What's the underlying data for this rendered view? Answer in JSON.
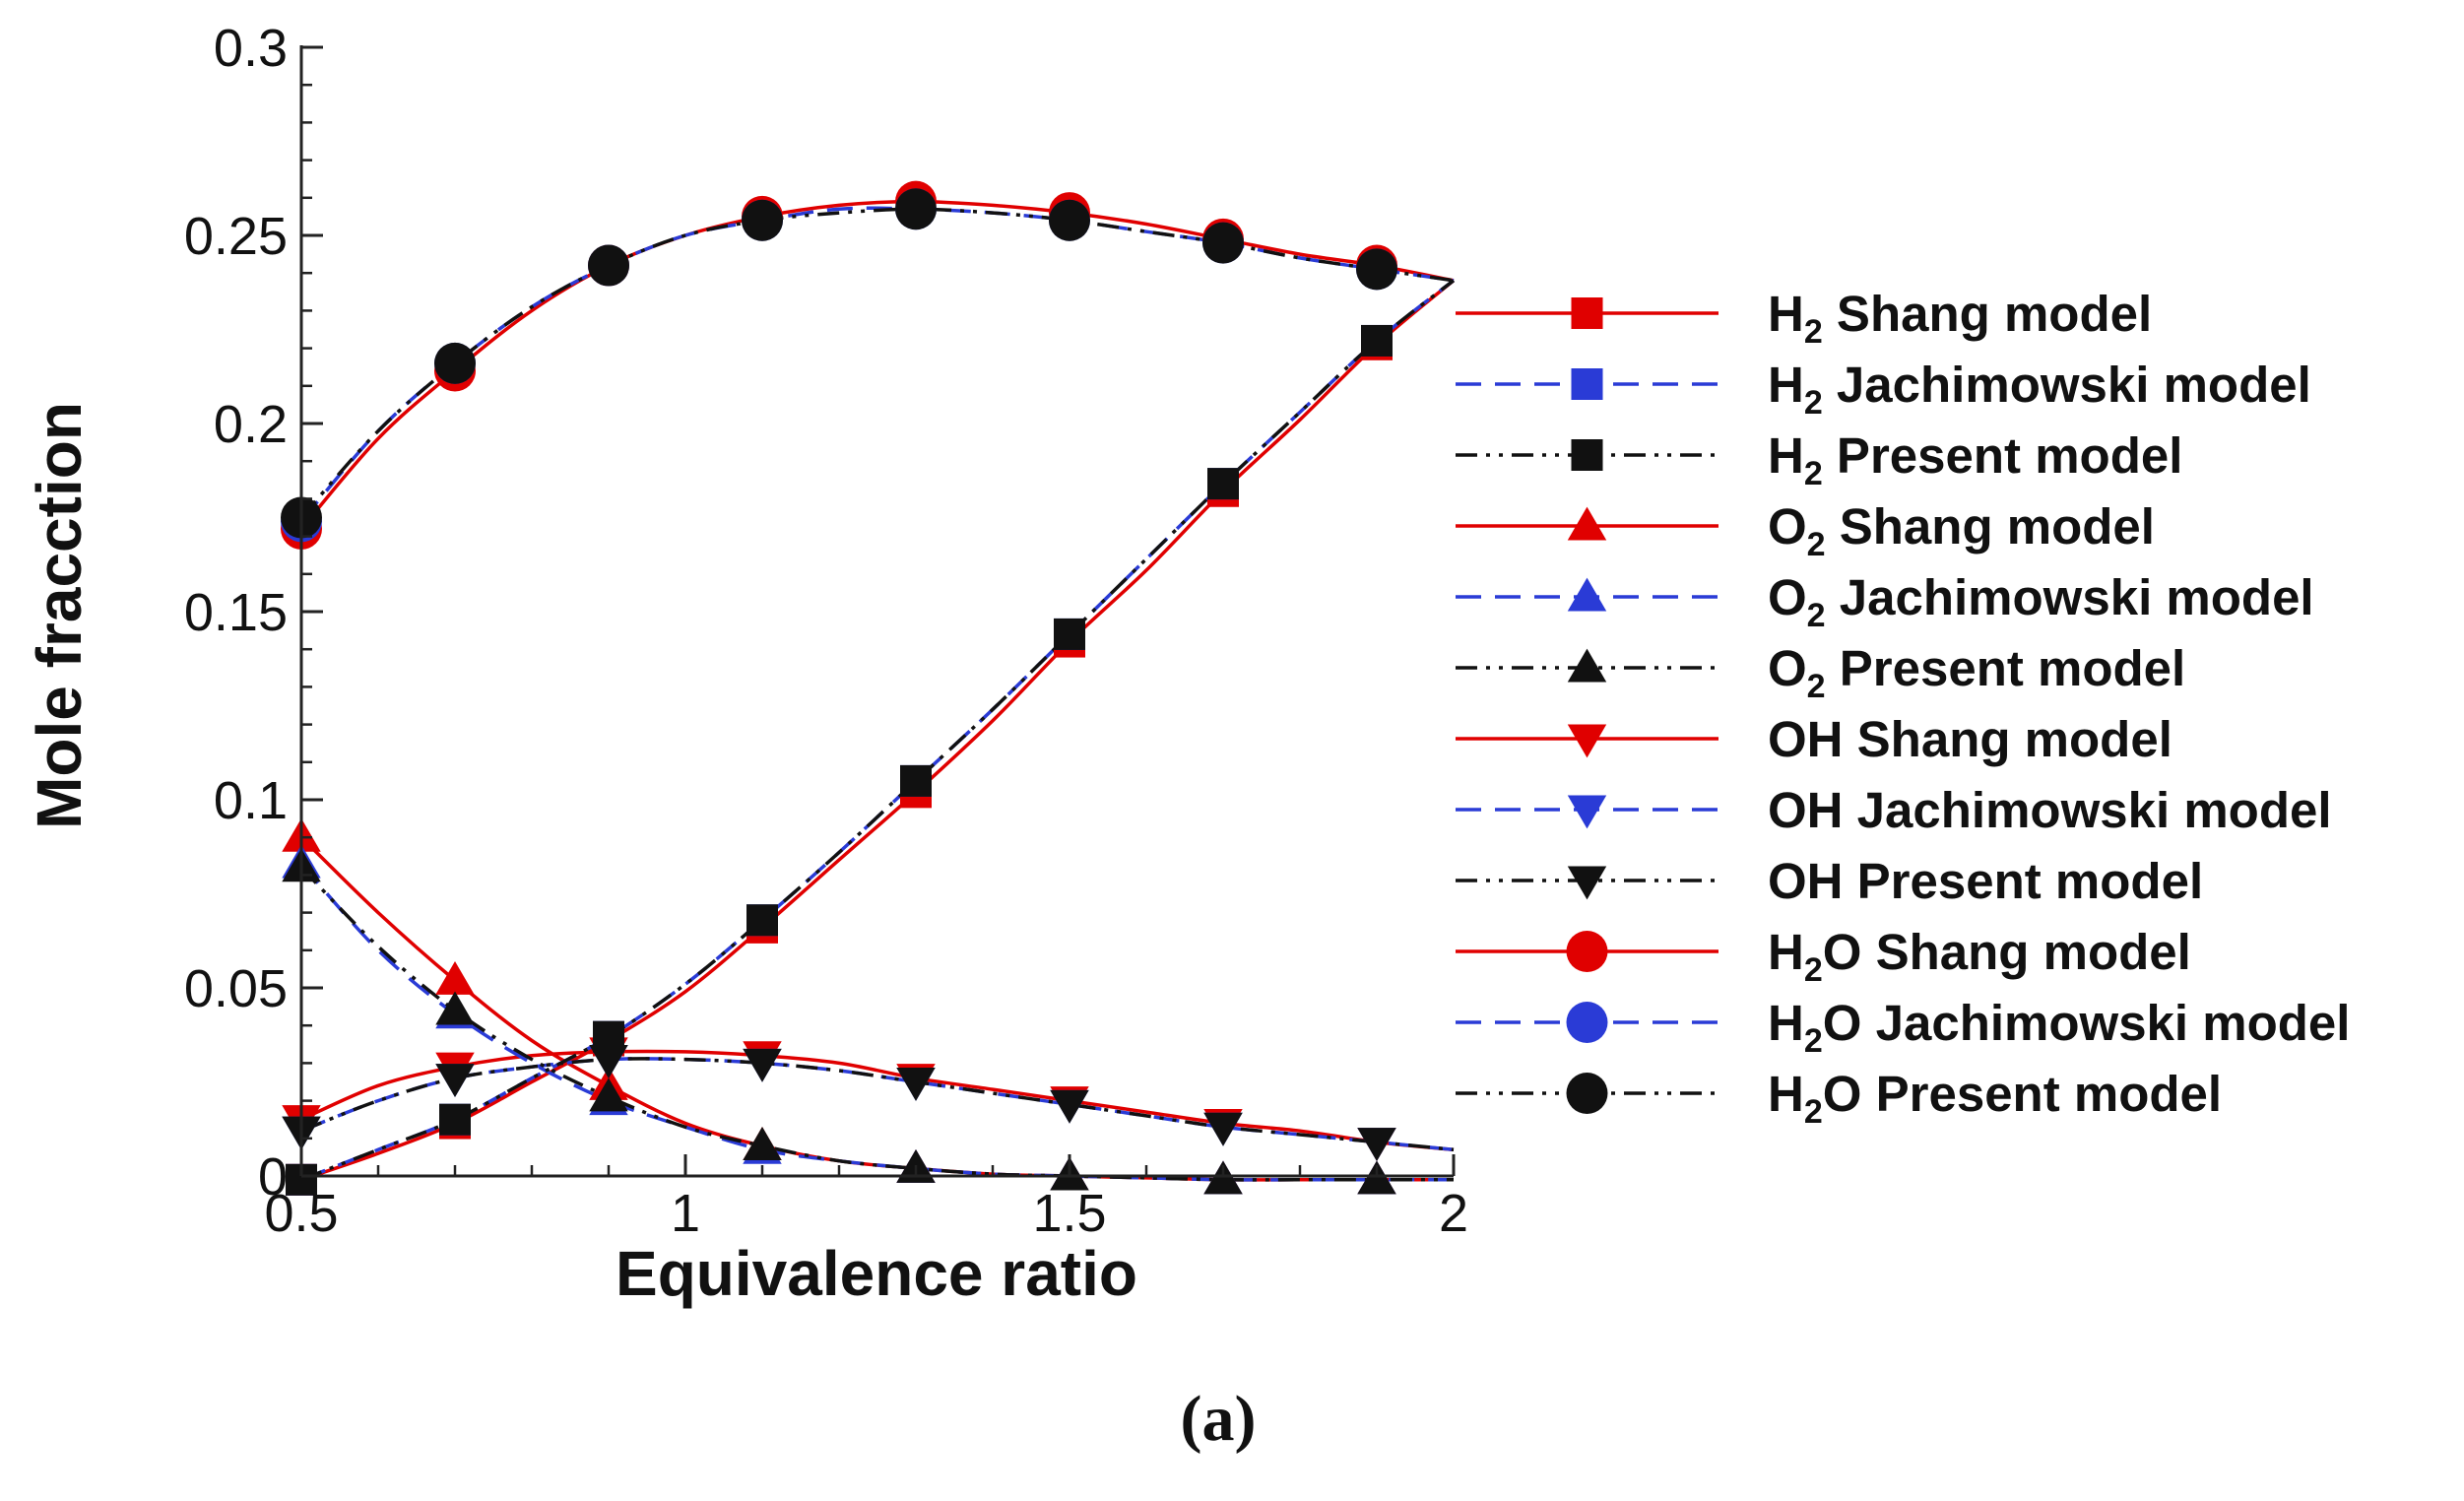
{
  "chart_data": {
    "type": "line",
    "title": "",
    "xlabel": "Equivalence ratio",
    "ylabel": "Mole fracction",
    "xlim": [
      0.5,
      2
    ],
    "ylim": [
      0,
      0.3
    ],
    "xticks": [
      0.5,
      1,
      1.5,
      2
    ],
    "xtick_labels": [
      "0.5",
      "1",
      "1.5",
      "2"
    ],
    "yticks": [
      0,
      0.05,
      0.1,
      0.15,
      0.2,
      0.25,
      0.3
    ],
    "ytick_labels": [
      "0",
      "0.05",
      "0.1",
      "0.15",
      "0.2",
      "0.25",
      "0.3"
    ],
    "grid": false,
    "legend_position": "right",
    "caption": "(a)",
    "marker_x": [
      0.5,
      0.7,
      0.9,
      1.1,
      1.3,
      1.5,
      1.7,
      1.9
    ],
    "series": [
      {
        "species": "H",
        "sub": "2",
        "rest": "",
        "model": "Shang model",
        "color": "#e00000",
        "dash": "solid",
        "marker": "square",
        "x": [
          0.5,
          0.6,
          0.7,
          0.8,
          0.9,
          1.0,
          1.1,
          1.2,
          1.3,
          1.4,
          1.5,
          1.6,
          1.7,
          1.8,
          1.9,
          2.0
        ],
        "y": [
          -0.001,
          0.006,
          0.014,
          0.025,
          0.036,
          0.049,
          0.066,
          0.084,
          0.102,
          0.121,
          0.142,
          0.161,
          0.182,
          0.201,
          0.221,
          0.238
        ]
      },
      {
        "species": "H",
        "sub": "2",
        "rest": "",
        "model": "Jachimowski model",
        "color": "#2a3bd6",
        "dash": "dashed",
        "marker": "square",
        "x": [
          0.5,
          0.6,
          0.7,
          0.8,
          0.9,
          1.0,
          1.1,
          1.2,
          1.3,
          1.4,
          1.5,
          1.6,
          1.7,
          1.8,
          1.9,
          2.0
        ],
        "y": [
          -0.001,
          0.007,
          0.015,
          0.026,
          0.037,
          0.051,
          0.068,
          0.086,
          0.105,
          0.124,
          0.144,
          0.164,
          0.184,
          0.203,
          0.222,
          0.238
        ]
      },
      {
        "species": "H",
        "sub": "2",
        "rest": "",
        "model": "Present model",
        "color": "#111111",
        "dash": "dashdot",
        "marker": "square",
        "x": [
          0.5,
          0.6,
          0.7,
          0.8,
          0.9,
          1.0,
          1.1,
          1.2,
          1.3,
          1.4,
          1.5,
          1.6,
          1.7,
          1.8,
          1.9,
          2.0
        ],
        "y": [
          -0.001,
          0.007,
          0.015,
          0.026,
          0.037,
          0.051,
          0.068,
          0.086,
          0.105,
          0.124,
          0.144,
          0.164,
          0.184,
          0.203,
          0.222,
          0.238
        ]
      },
      {
        "species": "O",
        "sub": "2",
        "rest": "",
        "model": "Shang model",
        "color": "#e00000",
        "dash": "solid",
        "marker": "triangle-up",
        "x": [
          0.5,
          0.6,
          0.7,
          0.8,
          0.9,
          1.0,
          1.1,
          1.2,
          1.3,
          1.4,
          1.5,
          1.6,
          1.7,
          1.8,
          1.9,
          2.0
        ],
        "y": [
          0.09,
          0.07,
          0.052,
          0.036,
          0.024,
          0.014,
          0.008,
          0.004,
          0.002,
          0.0005,
          0.0,
          -0.0005,
          -0.001,
          -0.001,
          -0.001,
          -0.001
        ]
      },
      {
        "species": "O",
        "sub": "2",
        "rest": "",
        "model": "Jachimowski model",
        "color": "#2a3bd6",
        "dash": "dashed",
        "marker": "triangle-up",
        "x": [
          0.5,
          0.6,
          0.7,
          0.8,
          0.9,
          1.0,
          1.1,
          1.2,
          1.3,
          1.4,
          1.5,
          1.6,
          1.7,
          1.8,
          1.9,
          2.0
        ],
        "y": [
          0.083,
          0.06,
          0.043,
          0.03,
          0.02,
          0.013,
          0.007,
          0.004,
          0.002,
          0.0005,
          0.0,
          -0.0005,
          -0.001,
          -0.001,
          -0.001,
          -0.001
        ]
      },
      {
        "species": "O",
        "sub": "2",
        "rest": "",
        "model": "Present model",
        "color": "#111111",
        "dash": "dashdot",
        "marker": "triangle-up",
        "x": [
          0.5,
          0.6,
          0.7,
          0.8,
          0.9,
          1.0,
          1.1,
          1.2,
          1.3,
          1.4,
          1.5,
          1.6,
          1.7,
          1.8,
          1.9,
          2.0
        ],
        "y": [
          0.082,
          0.061,
          0.044,
          0.031,
          0.021,
          0.013,
          0.008,
          0.004,
          0.002,
          0.0005,
          0.0,
          -0.0005,
          -0.001,
          -0.001,
          -0.001,
          -0.001
        ]
      },
      {
        "species": "OH",
        "sub": "",
        "rest": "",
        "model": "Shang model",
        "color": "#e00000",
        "dash": "solid",
        "marker": "triangle-down",
        "x": [
          0.5,
          0.6,
          0.7,
          0.8,
          0.9,
          1.0,
          1.1,
          1.2,
          1.3,
          1.4,
          1.5,
          1.6,
          1.7,
          1.8,
          1.9,
          2.0
        ],
        "y": [
          0.015,
          0.024,
          0.029,
          0.032,
          0.033,
          0.033,
          0.032,
          0.03,
          0.026,
          0.023,
          0.02,
          0.017,
          0.014,
          0.012,
          0.009,
          0.007
        ]
      },
      {
        "species": "OH",
        "sub": "",
        "rest": "",
        "model": "Jachimowski model",
        "color": "#2a3bd6",
        "dash": "dashed",
        "marker": "triangle-down",
        "x": [
          0.5,
          0.6,
          0.7,
          0.8,
          0.9,
          1.0,
          1.1,
          1.2,
          1.3,
          1.4,
          1.5,
          1.6,
          1.7,
          1.8,
          1.9,
          2.0
        ],
        "y": [
          0.012,
          0.02,
          0.026,
          0.029,
          0.031,
          0.031,
          0.03,
          0.028,
          0.025,
          0.022,
          0.019,
          0.016,
          0.013,
          0.011,
          0.009,
          0.007
        ]
      },
      {
        "species": "OH",
        "sub": "",
        "rest": "",
        "model": "Present model",
        "color": "#111111",
        "dash": "dashdot",
        "marker": "triangle-down",
        "x": [
          0.5,
          0.6,
          0.7,
          0.8,
          0.9,
          1.0,
          1.1,
          1.2,
          1.3,
          1.4,
          1.5,
          1.6,
          1.7,
          1.8,
          1.9,
          2.0
        ],
        "y": [
          0.012,
          0.02,
          0.026,
          0.029,
          0.031,
          0.031,
          0.03,
          0.028,
          0.025,
          0.022,
          0.019,
          0.016,
          0.013,
          0.011,
          0.009,
          0.007
        ]
      },
      {
        "species": "H",
        "sub": "2",
        "rest": "O",
        "model": "Shang model",
        "color": "#e00000",
        "dash": "solid",
        "marker": "circle",
        "x": [
          0.5,
          0.6,
          0.7,
          0.8,
          0.9,
          1.0,
          1.1,
          1.2,
          1.3,
          1.4,
          1.5,
          1.6,
          1.7,
          1.8,
          1.9,
          2.0
        ],
        "y": [
          0.172,
          0.196,
          0.214,
          0.23,
          0.242,
          0.25,
          0.255,
          0.258,
          0.259,
          0.258,
          0.256,
          0.253,
          0.249,
          0.245,
          0.242,
          0.238
        ]
      },
      {
        "species": "H",
        "sub": "2",
        "rest": "O",
        "model": "Jachimowski model",
        "color": "#2a3bd6",
        "dash": "dashed",
        "marker": "circle",
        "x": [
          0.5,
          0.6,
          0.7,
          0.8,
          0.9,
          1.0,
          1.1,
          1.2,
          1.3,
          1.4,
          1.5,
          1.6,
          1.7,
          1.8,
          1.9,
          2.0
        ],
        "y": [
          0.174,
          0.198,
          0.216,
          0.231,
          0.242,
          0.25,
          0.254,
          0.257,
          0.257,
          0.256,
          0.254,
          0.251,
          0.248,
          0.244,
          0.241,
          0.238
        ]
      },
      {
        "species": "H",
        "sub": "2",
        "rest": "O",
        "model": "Present model",
        "color": "#111111",
        "dash": "dashdot",
        "marker": "circle",
        "x": [
          0.5,
          0.6,
          0.7,
          0.8,
          0.9,
          1.0,
          1.1,
          1.2,
          1.3,
          1.4,
          1.5,
          1.6,
          1.7,
          1.8,
          1.9,
          2.0
        ],
        "y": [
          0.175,
          0.198,
          0.216,
          0.231,
          0.242,
          0.25,
          0.254,
          0.256,
          0.257,
          0.256,
          0.254,
          0.251,
          0.248,
          0.244,
          0.241,
          0.238
        ]
      }
    ]
  }
}
